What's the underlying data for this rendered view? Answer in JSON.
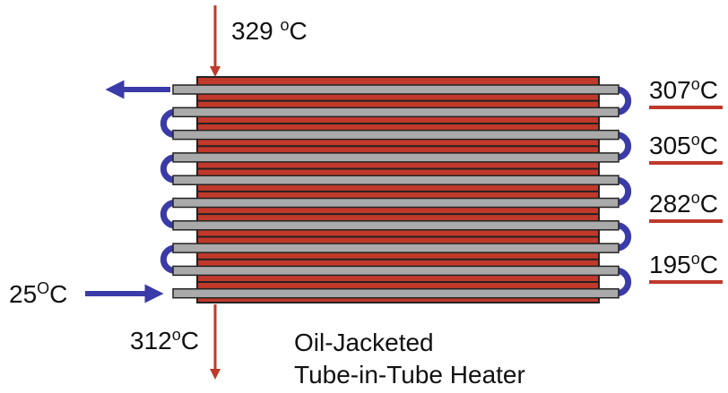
{
  "labels": {
    "top_inlet": {
      "temp": "329",
      "sup": "o",
      "unit": "C"
    },
    "bottom_outlet": {
      "temp": "312",
      "sup": "o",
      "unit": "C"
    },
    "feed": {
      "temp": "25",
      "sup": "O",
      "unit": "C"
    },
    "right": [
      {
        "temp": "307",
        "sup": "o",
        "unit": "C"
      },
      {
        "temp": "305",
        "sup": "o",
        "unit": "C"
      },
      {
        "temp": "282",
        "sup": "o",
        "unit": "C"
      },
      {
        "temp": "195",
        "sup": "o",
        "unit": "C"
      }
    ]
  },
  "caption": {
    "line1": "Oil-Jacketed",
    "line2": "Tube-in-Tube Heater"
  }
}
